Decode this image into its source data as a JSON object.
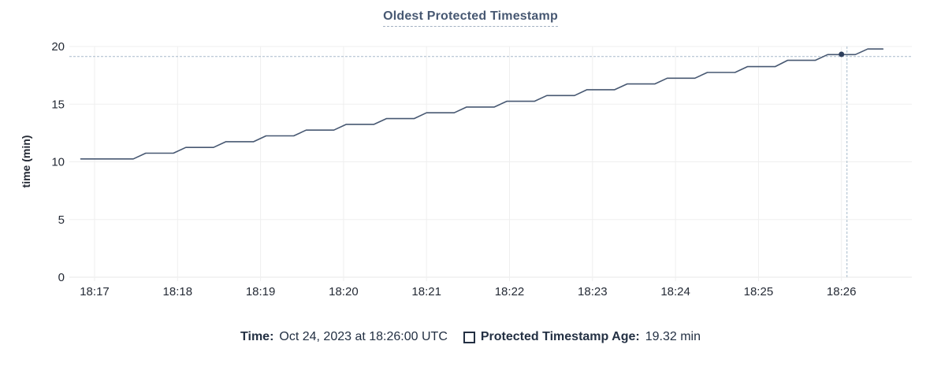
{
  "title": "Oldest Protected Timestamp",
  "chart_data": {
    "type": "line",
    "title": "Oldest Protected Timestamp",
    "xlabel": "",
    "ylabel": "time (min)",
    "ylim": [
      0,
      20
    ],
    "y_ticks": [
      0,
      5,
      10,
      15,
      20
    ],
    "x_tick_labels": [
      "18:17",
      "18:18",
      "18:19",
      "18:20",
      "18:21",
      "18:22",
      "18:23",
      "18:24",
      "18:25",
      "18:26"
    ],
    "x_tick_interval_seconds": 60,
    "x_unit": "seconds after 18:17:00 UTC",
    "grid": true,
    "legend_position": "bottom",
    "series": [
      {
        "name": "Protected Timestamp Age",
        "points": [
          [
            -10,
            10.25
          ],
          [
            28,
            10.25
          ],
          [
            37,
            10.75
          ],
          [
            57,
            10.75
          ],
          [
            66,
            11.25
          ],
          [
            86,
            11.25
          ],
          [
            95,
            11.75
          ],
          [
            115,
            11.75
          ],
          [
            124,
            12.25
          ],
          [
            144,
            12.25
          ],
          [
            153,
            12.75
          ],
          [
            173,
            12.75
          ],
          [
            182,
            13.25
          ],
          [
            202,
            13.25
          ],
          [
            211,
            13.75
          ],
          [
            231,
            13.75
          ],
          [
            240,
            14.25
          ],
          [
            260,
            14.25
          ],
          [
            269,
            14.75
          ],
          [
            289,
            14.75
          ],
          [
            298,
            15.25
          ],
          [
            318,
            15.25
          ],
          [
            327,
            15.75
          ],
          [
            347,
            15.75
          ],
          [
            356,
            16.25
          ],
          [
            376,
            16.25
          ],
          [
            385,
            16.75
          ],
          [
            405,
            16.75
          ],
          [
            414,
            17.25
          ],
          [
            434,
            17.25
          ],
          [
            443,
            17.75
          ],
          [
            463,
            17.75
          ],
          [
            472,
            18.25
          ],
          [
            492,
            18.25
          ],
          [
            501,
            18.8
          ],
          [
            521,
            18.8
          ],
          [
            530,
            19.3
          ],
          [
            550,
            19.3
          ],
          [
            559,
            19.78
          ],
          [
            570,
            19.78
          ]
        ]
      }
    ],
    "highlight_point": {
      "t": 540,
      "value": 19.32,
      "time_label": "18:26:00"
    },
    "crosshair": {
      "t": 544,
      "value": 19.13
    }
  },
  "legend": {
    "time_label": "Time:",
    "time_value": "Oct 24, 2023 at 18:26:00 UTC",
    "series_label": "Protected Timestamp Age:",
    "series_value": "19.32 min",
    "marker": "hollow-square-icon"
  },
  "colors": {
    "line": "#475872",
    "dot": "#2e3f5c",
    "crosshair": "#a7bacb",
    "grid": "#efefef",
    "axis_line": "#e7e7e7",
    "axis_text": "#242a35",
    "title_text": "#475872",
    "legend_text": "#233043"
  }
}
